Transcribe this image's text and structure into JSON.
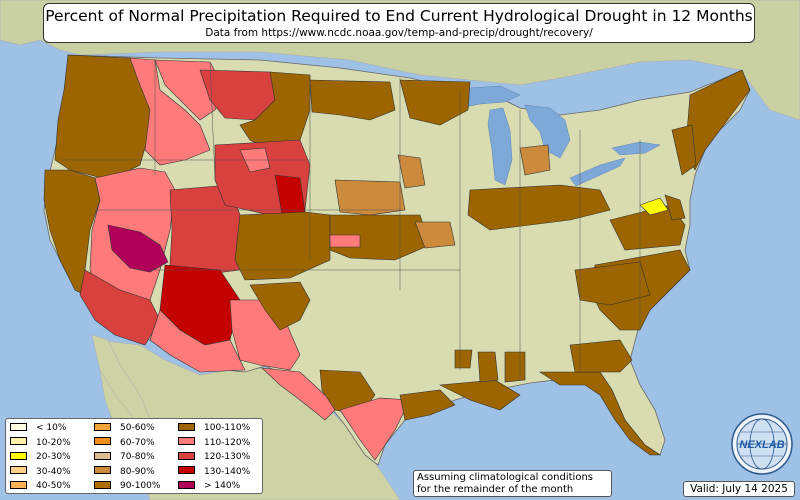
{
  "title": "Percent of Normal Precipitation Required to End Current Hydrological Drought in 12 Months",
  "subtitle": "Data from https://www.ncdc.noaa.gov/temp-and-precip/drought/recovery/",
  "legend": [
    {
      "label": "< 10%",
      "color": "#fffde6"
    },
    {
      "label": "10-20%",
      "color": "#fff3a6"
    },
    {
      "label": "20-30%",
      "color": "#ffff00"
    },
    {
      "label": "30-40%",
      "color": "#ffd08a"
    },
    {
      "label": "40-50%",
      "color": "#ffb357"
    },
    {
      "label": "50-60%",
      "color": "#f5a33a"
    },
    {
      "label": "60-70%",
      "color": "#f08f1e"
    },
    {
      "label": "70-80%",
      "color": "#dcbf8e"
    },
    {
      "label": "80-90%",
      "color": "#cc8a3c"
    },
    {
      "label": "90-100%",
      "color": "#b06e00"
    },
    {
      "label": "100-110%",
      "color": "#9c6500"
    },
    {
      "label": "110-120%",
      "color": "#ff7a7a"
    },
    {
      "label": "120-130%",
      "color": "#d8413e"
    },
    {
      "label": "130-140%",
      "color": "#c40000"
    },
    {
      "label": "> 140%",
      "color": "#b0005a"
    }
  ],
  "note": {
    "line1": "Assuming climatological conditions",
    "line2": "for the remainder of the month"
  },
  "valid": "Valid: July 14 2025",
  "logo": {
    "text": "NEXLAB",
    "icon": "globe-logo-icon"
  },
  "colors": {
    "ocean": "#9fc1e6",
    "land_us": "#d8dcb0",
    "land_foreign": "#c9d0a2",
    "lake": "#7ea8d8"
  }
}
